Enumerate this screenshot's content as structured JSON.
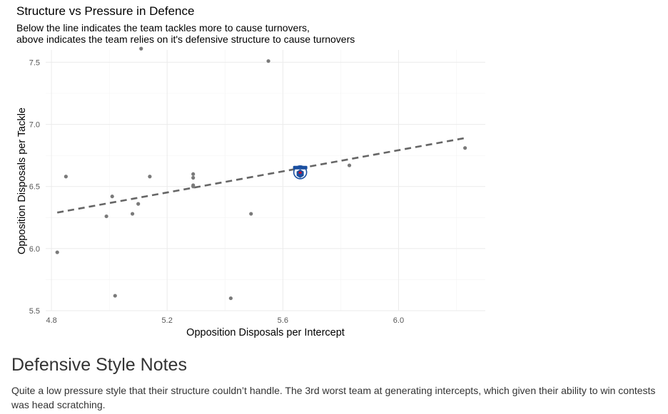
{
  "chart_data": {
    "type": "scatter",
    "title": "Structure vs Pressure in Defence",
    "subtitle": [
      "Below the line indicates the team tackles more to cause turnovers,",
      "above indicates the team relies on it's defensive structure to cause turnovers"
    ],
    "xlabel": "Opposition Disposals per Intercept",
    "ylabel": "Opposition Disposals per Tackle",
    "xlim": [
      4.78,
      6.3
    ],
    "ylim": [
      5.5,
      7.6
    ],
    "x_ticks": [
      "4.8",
      "5.2",
      "5.6",
      "6.0"
    ],
    "y_ticks": [
      "5.5",
      "6.0",
      "6.5",
      "7.0",
      "7.5"
    ],
    "grid": true,
    "point_color": "#7a7a7a",
    "trendline": {
      "style": "dashed",
      "color": "#666666",
      "x": [
        4.82,
        6.23
      ],
      "y": [
        6.29,
        6.89
      ]
    },
    "highlight": {
      "x": 5.66,
      "y": 6.62,
      "icon": "team-logo-icon",
      "colors": [
        "#1a4fa0",
        "#c8102e",
        "#ffffff"
      ]
    },
    "points": [
      {
        "x": 5.11,
        "y": 7.61
      },
      {
        "x": 5.55,
        "y": 7.51
      },
      {
        "x": 6.23,
        "y": 6.81
      },
      {
        "x": 5.83,
        "y": 6.67
      },
      {
        "x": 4.85,
        "y": 6.58
      },
      {
        "x": 5.14,
        "y": 6.58
      },
      {
        "x": 5.29,
        "y": 6.6
      },
      {
        "x": 5.29,
        "y": 6.57
      },
      {
        "x": 5.29,
        "y": 6.51
      },
      {
        "x": 5.29,
        "y": 6.5
      },
      {
        "x": 5.01,
        "y": 6.42
      },
      {
        "x": 5.1,
        "y": 6.36
      },
      {
        "x": 5.08,
        "y": 6.28
      },
      {
        "x": 4.99,
        "y": 6.26
      },
      {
        "x": 5.49,
        "y": 6.28
      },
      {
        "x": 4.82,
        "y": 5.97
      },
      {
        "x": 5.02,
        "y": 5.62
      },
      {
        "x": 5.42,
        "y": 5.6
      }
    ]
  },
  "notes": {
    "heading": "Defensive Style Notes",
    "body": "Quite a low pressure style that their structure couldn’t handle. The 3rd worst team at generating intercepts, which given their ability to win contests was head scratching."
  }
}
